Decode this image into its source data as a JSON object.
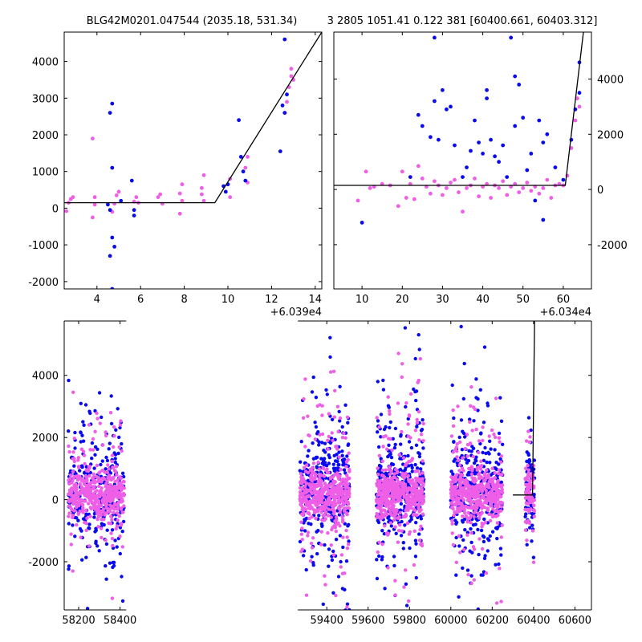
{
  "header": {
    "title": "BLG42M0201.047544 (2035.18, 531.34)",
    "info": "3 2805 1051.41 0.122 381 [60400.661, 60403.312]"
  },
  "colors": {
    "blue": "#0a0aee",
    "pink": "#ee5ee6",
    "line": "#000000"
  },
  "chart_data": [
    {
      "type": "scatter",
      "panel": "top-left",
      "offset_label": "+6.039e4",
      "xlim": [
        2.5,
        14.3
      ],
      "ylim": [
        -2200,
        4800
      ],
      "xticks": [
        4,
        6,
        8,
        10,
        12,
        14
      ],
      "yticks": [
        -2000,
        -1000,
        0,
        1000,
        2000,
        3000,
        4000
      ],
      "ytick_side": "left",
      "model_line": [
        [
          2.5,
          150
        ],
        [
          9.4,
          150
        ],
        [
          14.3,
          4800
        ]
      ],
      "series": [
        {
          "color": "pink",
          "points": [
            [
              2.6,
              -80
            ],
            [
              2.7,
              150
            ],
            [
              2.8,
              250
            ],
            [
              2.9,
              300
            ],
            [
              3.8,
              1900
            ],
            [
              3.8,
              -250
            ],
            [
              3.9,
              100
            ],
            [
              3.9,
              300
            ],
            [
              4.7,
              -100
            ],
            [
              4.8,
              120
            ],
            [
              4.9,
              350
            ],
            [
              5.0,
              450
            ],
            [
              5.7,
              180
            ],
            [
              5.8,
              300
            ],
            [
              5.9,
              150
            ],
            [
              6.8,
              300
            ],
            [
              6.9,
              380
            ],
            [
              7.0,
              120
            ],
            [
              7.8,
              -150
            ],
            [
              7.8,
              400
            ],
            [
              7.9,
              650
            ],
            [
              7.9,
              200
            ],
            [
              8.8,
              380
            ],
            [
              8.8,
              550
            ],
            [
              8.9,
              900
            ],
            [
              8.9,
              200
            ],
            [
              10.0,
              650
            ],
            [
              10.1,
              800
            ],
            [
              10.1,
              300
            ],
            [
              10.8,
              1100
            ],
            [
              10.9,
              1400
            ],
            [
              10.9,
              700
            ],
            [
              12.6,
              2600
            ],
            [
              12.7,
              2900
            ],
            [
              12.8,
              3300
            ],
            [
              12.9,
              3600
            ],
            [
              12.9,
              3800
            ],
            [
              13.0,
              3500
            ]
          ]
        },
        {
          "color": "blue",
          "points": [
            [
              4.5,
              100
            ],
            [
              4.6,
              -50
            ],
            [
              4.6,
              2600
            ],
            [
              4.7,
              2850
            ],
            [
              4.7,
              1100
            ],
            [
              4.6,
              -1300
            ],
            [
              4.7,
              -800
            ],
            [
              4.8,
              -1050
            ],
            [
              4.7,
              -2200
            ],
            [
              5.1,
              200
            ],
            [
              5.6,
              750
            ],
            [
              5.7,
              -50
            ],
            [
              5.7,
              -200
            ],
            [
              9.8,
              600
            ],
            [
              9.9,
              450
            ],
            [
              10.0,
              650
            ],
            [
              10.5,
              2400
            ],
            [
              10.6,
              1400
            ],
            [
              10.7,
              1000
            ],
            [
              10.8,
              750
            ],
            [
              12.4,
              1550
            ],
            [
              12.5,
              2800
            ],
            [
              12.6,
              4600
            ],
            [
              12.6,
              2600
            ],
            [
              12.7,
              3100
            ]
          ]
        }
      ]
    },
    {
      "type": "scatter",
      "panel": "top-right",
      "offset_label": "+6.034e4",
      "xlim": [
        3,
        67
      ],
      "ylim": [
        -3600,
        5700
      ],
      "xticks": [
        10,
        20,
        30,
        40,
        50,
        60
      ],
      "yticks": [
        -2000,
        0,
        2000,
        4000
      ],
      "ytick_side": "right",
      "model_line": [
        [
          3,
          150
        ],
        [
          60.5,
          150
        ],
        [
          65,
          5700
        ]
      ],
      "series": [
        {
          "color": "pink",
          "points": [
            [
              9,
              -400
            ],
            [
              11,
              650
            ],
            [
              12,
              50
            ],
            [
              13,
              100
            ],
            [
              15,
              200
            ],
            [
              17,
              150
            ],
            [
              19,
              -600
            ],
            [
              20,
              650
            ],
            [
              21,
              -300
            ],
            [
              22,
              200
            ],
            [
              23,
              -350
            ],
            [
              24,
              850
            ],
            [
              25,
              400
            ],
            [
              26,
              100
            ],
            [
              27,
              -150
            ],
            [
              28,
              300
            ],
            [
              29,
              150
            ],
            [
              30,
              -200
            ],
            [
              31,
              50
            ],
            [
              32,
              250
            ],
            [
              33,
              350
            ],
            [
              34,
              -100
            ],
            [
              35,
              -800
            ],
            [
              36,
              50
            ],
            [
              37,
              150
            ],
            [
              38,
              400
            ],
            [
              39,
              -250
            ],
            [
              40,
              100
            ],
            [
              41,
              200
            ],
            [
              42,
              -300
            ],
            [
              43,
              150
            ],
            [
              44,
              50
            ],
            [
              45,
              300
            ],
            [
              46,
              -200
            ],
            [
              47,
              100
            ],
            [
              48,
              200
            ],
            [
              49,
              -100
            ],
            [
              50,
              50
            ],
            [
              51,
              250
            ],
            [
              52,
              -50
            ],
            [
              53,
              100
            ],
            [
              54,
              -150
            ],
            [
              55,
              50
            ],
            [
              56,
              350
            ],
            [
              57,
              -300
            ],
            [
              58,
              150
            ],
            [
              59,
              200
            ],
            [
              60,
              150
            ],
            [
              61,
              500
            ],
            [
              62,
              1500
            ],
            [
              63,
              2500
            ],
            [
              63.5,
              3300
            ],
            [
              64,
              3000
            ]
          ]
        },
        {
          "color": "blue",
          "points": [
            [
              10,
              -1200
            ],
            [
              22,
              450
            ],
            [
              24,
              2700
            ],
            [
              25,
              2300
            ],
            [
              27,
              1900
            ],
            [
              28,
              5500
            ],
            [
              28,
              3200
            ],
            [
              29,
              1800
            ],
            [
              30,
              3600
            ],
            [
              31,
              2900
            ],
            [
              32,
              3000
            ],
            [
              33,
              1600
            ],
            [
              35,
              450
            ],
            [
              36,
              800
            ],
            [
              37,
              1400
            ],
            [
              38,
              2500
            ],
            [
              39,
              1700
            ],
            [
              40,
              1300
            ],
            [
              41,
              3600
            ],
            [
              41,
              3300
            ],
            [
              42,
              1800
            ],
            [
              43,
              1200
            ],
            [
              44,
              1000
            ],
            [
              45,
              1600
            ],
            [
              46,
              450
            ],
            [
              47,
              5500
            ],
            [
              48,
              2300
            ],
            [
              48,
              4100
            ],
            [
              49,
              3800
            ],
            [
              50,
              2600
            ],
            [
              51,
              700
            ],
            [
              52,
              1300
            ],
            [
              53,
              -400
            ],
            [
              54,
              2500
            ],
            [
              55,
              -1100
            ],
            [
              55,
              1700
            ],
            [
              56,
              2000
            ],
            [
              58,
              800
            ],
            [
              60,
              350
            ],
            [
              62,
              1800
            ],
            [
              63,
              2900
            ],
            [
              64,
              4600
            ],
            [
              64,
              3500
            ]
          ]
        }
      ]
    },
    {
      "type": "scatter",
      "panel": "bottom",
      "xlim": [
        58130,
        60680
      ],
      "ylim": [
        -3550,
        5750
      ],
      "xticks": [
        58200,
        58400,
        59400,
        59600,
        59800,
        60000,
        60200,
        60400,
        60600
      ],
      "yticks": [
        -2000,
        0,
        2000,
        4000
      ],
      "ytick_side": "left",
      "axis_break": [
        58430,
        59260
      ],
      "model_line": [
        [
          60300,
          150
        ],
        [
          60395,
          150
        ],
        [
          60405,
          5750
        ]
      ],
      "seasons": [
        {
          "start": 58150,
          "end": 58420,
          "n_core": 380,
          "n_wide": 110,
          "wide_sd": 1800
        },
        {
          "start": 59270,
          "end": 59510,
          "n_core": 380,
          "n_wide": 150,
          "wide_sd": 2100
        },
        {
          "start": 59640,
          "end": 59870,
          "n_core": 380,
          "n_wide": 150,
          "wide_sd": 2100
        },
        {
          "start": 60000,
          "end": 60250,
          "n_core": 380,
          "n_wide": 150,
          "wide_sd": 2100
        },
        {
          "start": 60360,
          "end": 60405,
          "n_core": 70,
          "n_wide": 30,
          "wide_sd": 1400
        }
      ]
    }
  ]
}
